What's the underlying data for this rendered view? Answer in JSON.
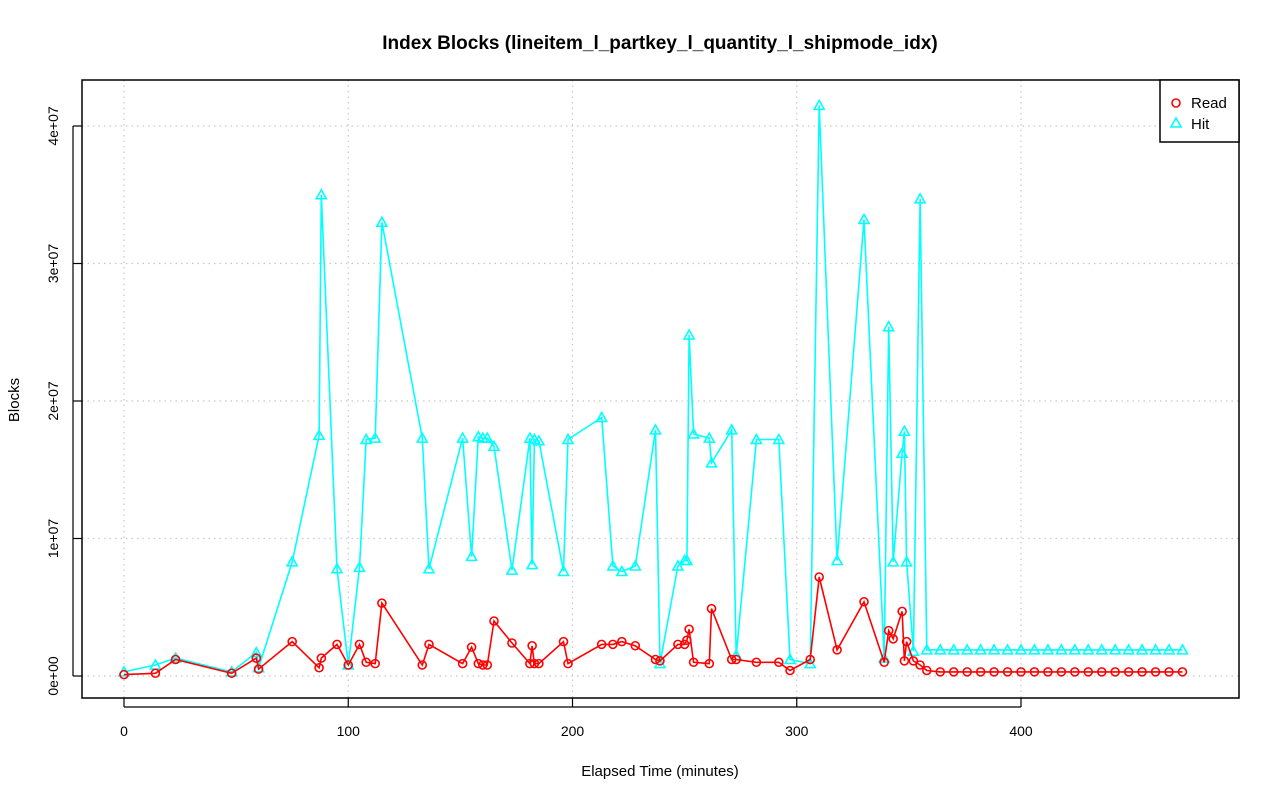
{
  "chart_data": {
    "type": "line",
    "title": "Index Blocks (lineitem_l_partkey_l_quantity_l_shipmode_idx)",
    "xlabel": "Elapsed Time (minutes)",
    "ylabel": "Blocks",
    "xlim": [
      -5,
      495
    ],
    "ylim": [
      -1700000,
      43500000
    ],
    "x_ticks": [
      0,
      100,
      200,
      300,
      400
    ],
    "x_tick_labels": [
      "0",
      "100",
      "200",
      "300",
      "400"
    ],
    "y_ticks": [
      0,
      10000000,
      20000000,
      30000000,
      40000000
    ],
    "y_tick_labels": [
      "0e+00",
      "1e+07",
      "2e+07",
      "3e+07",
      "4e+07"
    ],
    "grid": true,
    "legend": {
      "position": "top-right",
      "entries": [
        "Read",
        "Hit"
      ]
    },
    "background_points_note_removed": true,
    "series": [
      {
        "name": "Read",
        "color": "#ff0000",
        "marker": "circle",
        "x": [
          0,
          14,
          23,
          48,
          59,
          60,
          75,
          87,
          88,
          95,
          100,
          105,
          108,
          112,
          115,
          133,
          136,
          151,
          155,
          158,
          160,
          162,
          165,
          173,
          181,
          182,
          183,
          185,
          196,
          198,
          213,
          218,
          222,
          228,
          237,
          239,
          247,
          250,
          251,
          252,
          254,
          261,
          262,
          271,
          273,
          282,
          292,
          297,
          306,
          310,
          318,
          330,
          339,
          341,
          343,
          347,
          348,
          349,
          352,
          355,
          358,
          364,
          370,
          376,
          382,
          388,
          394,
          400,
          406,
          412,
          418,
          424,
          430,
          436,
          442,
          448,
          454,
          460,
          466,
          472
        ],
        "y": [
          100000,
          200000,
          1200000,
          200000,
          1300000,
          500000,
          2500000,
          600000,
          1300000,
          2300000,
          800000,
          2300000,
          1000000,
          900000,
          5300000,
          800000,
          2300000,
          900000,
          2100000,
          900000,
          800000,
          800000,
          4000000,
          2400000,
          900000,
          2200000,
          900000,
          900000,
          2500000,
          900000,
          2300000,
          2300000,
          2500000,
          2200000,
          1200000,
          1100000,
          2300000,
          2300000,
          2600000,
          3400000,
          1000000,
          900000,
          4900000,
          1200000,
          1200000,
          1000000,
          1000000,
          400000,
          1200000,
          7200000,
          1900000,
          5400000,
          1000000,
          3300000,
          2700000,
          4700000,
          1100000,
          2500000,
          1100000,
          800000,
          400000,
          300000,
          300000,
          300000,
          300000,
          300000,
          300000,
          300000,
          300000,
          300000,
          300000,
          300000,
          300000,
          300000,
          300000,
          300000,
          300000,
          300000,
          300000,
          300000
        ]
      },
      {
        "name": "Hit",
        "color": "#00ffff",
        "marker": "triangle",
        "x": [
          0,
          14,
          23,
          48,
          59,
          60,
          75,
          87,
          88,
          95,
          100,
          105,
          108,
          112,
          115,
          133,
          136,
          151,
          155,
          158,
          160,
          162,
          165,
          173,
          181,
          182,
          183,
          185,
          196,
          198,
          213,
          218,
          222,
          228,
          237,
          239,
          247,
          250,
          251,
          252,
          254,
          261,
          262,
          271,
          273,
          282,
          292,
          297,
          306,
          310,
          318,
          330,
          339,
          341,
          343,
          347,
          348,
          349,
          352,
          355,
          358,
          364,
          370,
          376,
          382,
          388,
          394,
          400,
          406,
          412,
          418,
          424,
          430,
          436,
          442,
          448,
          454,
          460,
          466,
          472
        ],
        "y": [
          300000,
          800000,
          1300000,
          300000,
          1700000,
          600000,
          8300000,
          17500000,
          35000000,
          7800000,
          800000,
          7900000,
          17200000,
          17300000,
          33000000,
          17300000,
          7800000,
          17300000,
          8700000,
          17400000,
          17300000,
          17300000,
          16700000,
          7700000,
          17300000,
          8100000,
          17200000,
          17100000,
          7600000,
          17200000,
          18800000,
          8000000,
          7600000,
          8000000,
          17900000,
          900000,
          8000000,
          8400000,
          8400000,
          24800000,
          17600000,
          17300000,
          15500000,
          17900000,
          1500000,
          17200000,
          17200000,
          1200000,
          900000,
          41500000,
          8400000,
          33200000,
          1300000,
          25400000,
          8300000,
          16200000,
          17800000,
          8300000,
          1800000,
          34700000,
          1900000,
          1900000,
          1900000,
          1900000,
          1900000,
          1900000,
          1900000,
          1900000,
          1900000,
          1900000,
          1900000,
          1900000,
          1900000,
          1900000,
          1900000,
          1900000,
          1900000,
          1900000,
          1900000,
          1900000
        ]
      }
    ]
  }
}
